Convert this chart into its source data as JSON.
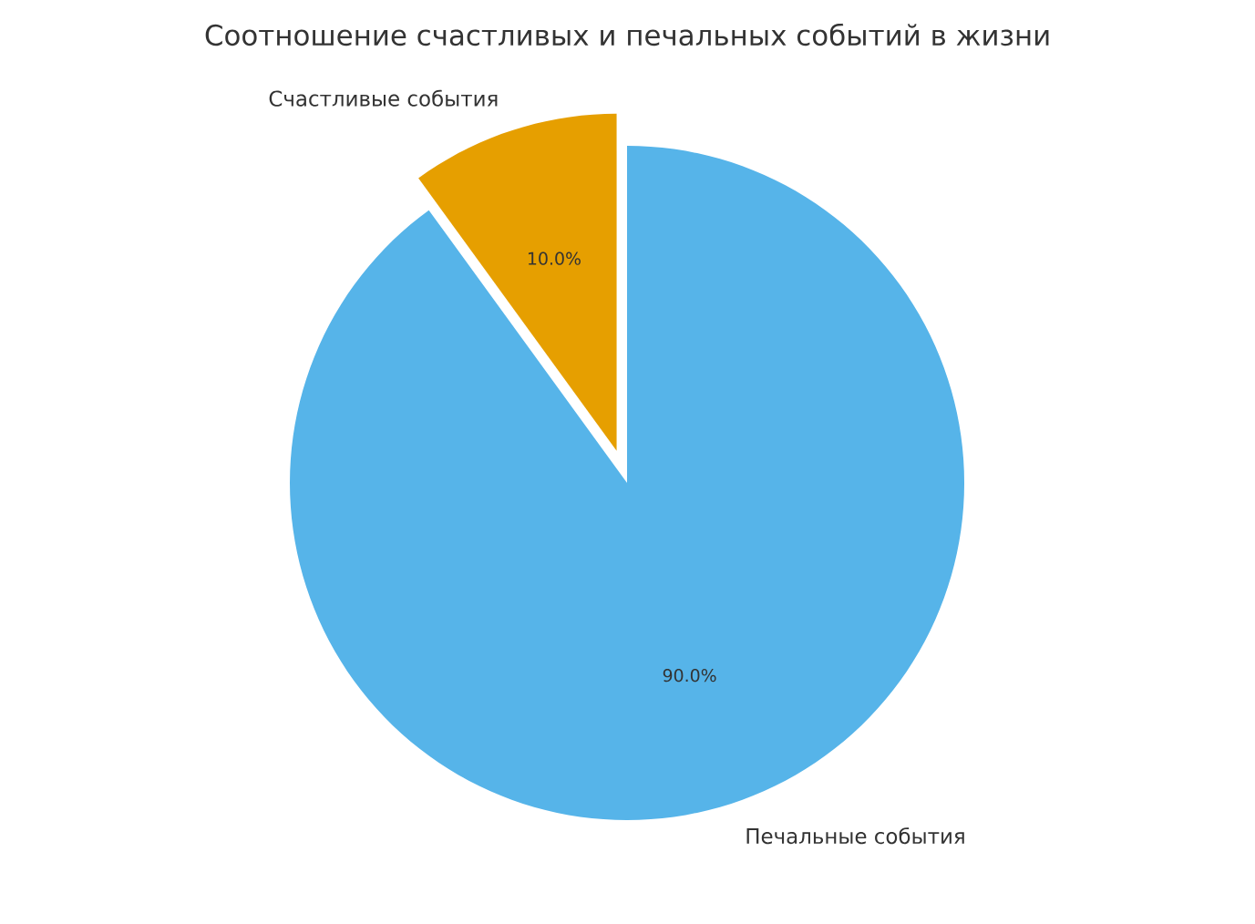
{
  "chart_data": {
    "type": "pie",
    "title": "Соотношение счастливых и печальных событий в жизни",
    "categories": [
      "Счастливые события",
      "Печальные события"
    ],
    "values": [
      10,
      90
    ],
    "colors": [
      "#e69f00",
      "#56b4e9"
    ],
    "value_labels": [
      "10.0%",
      "90.0%"
    ]
  }
}
